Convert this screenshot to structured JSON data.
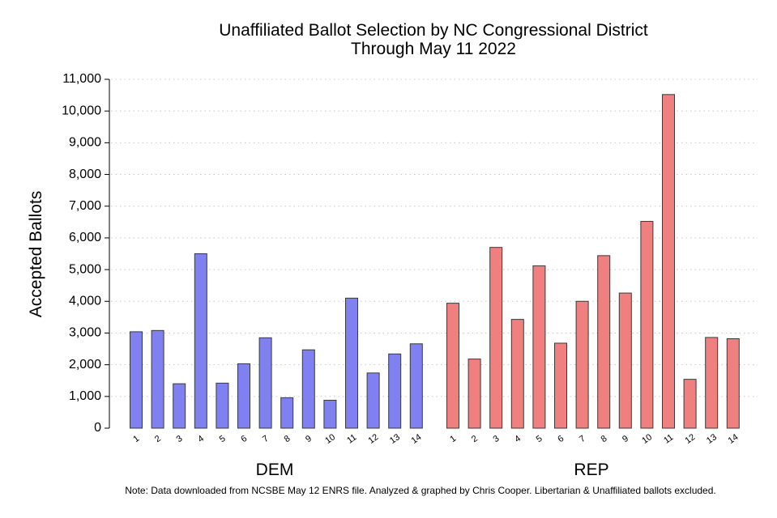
{
  "chart_data": {
    "type": "bar",
    "title": "Unaffiliated Ballot Selection by NC Congressional District",
    "subtitle": "Through May 11 2022",
    "ylabel": "Accepted Ballots",
    "ylim": [
      0,
      11000
    ],
    "yticks": [
      0,
      1000,
      2000,
      3000,
      4000,
      5000,
      6000,
      7000,
      8000,
      9000,
      10000,
      11000
    ],
    "ytick_labels": [
      "0",
      "1,000",
      "2,000",
      "3,000",
      "4,000",
      "5,000",
      "6,000",
      "7,000",
      "8,000",
      "9,000",
      "10,000",
      "11,000"
    ],
    "grid": "horizontal dotted",
    "categories": [
      "1",
      "2",
      "3",
      "4",
      "5",
      "6",
      "7",
      "8",
      "9",
      "10",
      "11",
      "12",
      "13",
      "14"
    ],
    "series": [
      {
        "name": "DEM",
        "color": "#8080f0",
        "values": [
          3040,
          3080,
          1400,
          5500,
          1420,
          2030,
          2850,
          960,
          2470,
          880,
          4100,
          1740,
          2340,
          2660
        ]
      },
      {
        "name": "REP",
        "color": "#f08080",
        "values": [
          3940,
          2180,
          5700,
          3430,
          5120,
          2680,
          4000,
          5440,
          4260,
          6520,
          10520,
          1540,
          2860,
          2820
        ]
      }
    ],
    "note": "Note: Data downloaded from NCSBE May 12 ENRS file. Analyzed & graphed by Chris Cooper. Libertarian & Unaffiliated ballots excluded."
  }
}
